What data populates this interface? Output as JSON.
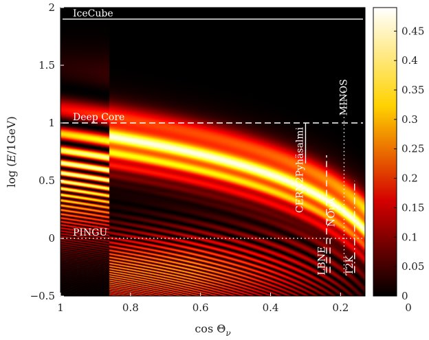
{
  "chart_data": {
    "type": "heatmap",
    "title": "",
    "xlabel_prefix": "cos",
    "xlabel_symbol": "Θ",
    "xlabel_sub": "ν",
    "ylabel_prefix": "log (",
    "ylabel_var": "E",
    "ylabel_suffix": "/1GeV)",
    "xlim": [
      1,
      0.13
    ],
    "ylim": [
      -0.5,
      2
    ],
    "x_reversed": true,
    "x_ticks": [
      1,
      0.8,
      0.6,
      0.4,
      0.2
    ],
    "x_tick_labels": [
      "1",
      "0.8",
      "0.6",
      "0.4",
      "0.2"
    ],
    "y_ticks": [
      -0.5,
      0,
      0.5,
      1,
      1.5,
      2
    ],
    "y_tick_labels": [
      "−0.5",
      "0",
      "0.5",
      "1",
      "1.5",
      "2"
    ],
    "colormap": "hot",
    "colorbar": {
      "range": [
        0,
        0.49
      ],
      "ticks": [
        0,
        0.05,
        0.1,
        0.15,
        0.2,
        0.25,
        0.3,
        0.35,
        0.4,
        0.45
      ],
      "tick_labels": [
        "0",
        "0.05",
        "0.1",
        "0.15",
        "0.2",
        "0.25",
        "0.3",
        "0.35",
        "0.4",
        "0.45"
      ],
      "bottom_label": "0"
    },
    "grid": false,
    "detectors": [
      {
        "name": "IceCube",
        "kind": "horizontal",
        "style": "solid",
        "y": 1.9
      },
      {
        "name": "Deep Core",
        "kind": "horizontal",
        "style": "dashed",
        "y": 1.0
      },
      {
        "name": "PINGU",
        "kind": "horizontal",
        "style": "dotted",
        "y": 0.0
      },
      {
        "name": "CERN2Pyhäsalmi",
        "kind": "vertical",
        "style": "solid",
        "x": 0.3,
        "y_range": [
          0.65,
          1.0
        ]
      },
      {
        "name": "NOνA",
        "kind": "vertical",
        "style": "dashed",
        "x": 0.24,
        "y_range": [
          -0.3,
          0.72
        ]
      },
      {
        "name": "LBNE",
        "kind": "vertical",
        "style": "dashed",
        "x": 0.23,
        "y_range": [
          -0.3,
          0.0
        ]
      },
      {
        "name": "MINOS",
        "kind": "vertical",
        "style": "dotted",
        "x": 0.19,
        "y_range": [
          -0.3,
          1.3
        ]
      },
      {
        "name": "T2K",
        "kind": "vertical",
        "style": "dashdot",
        "x": 0.16,
        "y_range": [
          -0.3,
          0.5
        ]
      }
    ]
  }
}
